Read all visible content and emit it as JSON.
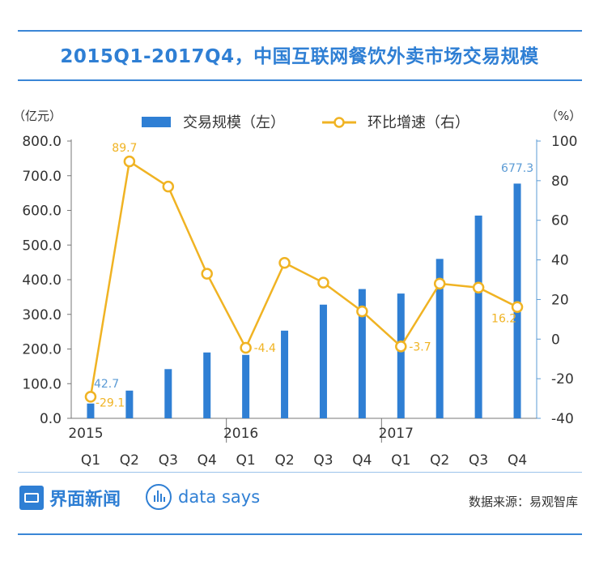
{
  "header": {
    "title": "2015Q1-2017Q4，中国互联网餐饮外卖市场交易规模"
  },
  "footer": {
    "brand": "界面新闻",
    "brand2": "data says",
    "source": "数据来源：易观智库"
  },
  "colors": {
    "bar": "#2f7fd4",
    "line": "#f0b323",
    "title": "#2f7fd4",
    "axis": "#333333",
    "right_axis": "#5b9bd5"
  },
  "chart_data": {
    "type": "bar+line",
    "left_unit": "（亿元）",
    "right_unit": "（%）",
    "categories": [
      "Q1",
      "Q2",
      "Q3",
      "Q4",
      "Q1",
      "Q2",
      "Q3",
      "Q4",
      "Q1",
      "Q2",
      "Q3",
      "Q4"
    ],
    "years": [
      {
        "label": "2015",
        "index": 0
      },
      {
        "label": "2016",
        "index": 4
      },
      {
        "label": "2017",
        "index": 8
      }
    ],
    "series": [
      {
        "name": "交易规模（左）",
        "type": "bar",
        "axis": "left",
        "values": [
          42.7,
          80,
          142,
          190,
          183,
          253,
          328,
          373,
          360,
          460,
          585,
          677.3
        ]
      },
      {
        "name": "环比增速（右）",
        "type": "line",
        "axis": "right",
        "values": [
          -29.1,
          89.7,
          77,
          33,
          -4.4,
          38.5,
          28.5,
          14,
          -3.7,
          28,
          26,
          16.2
        ]
      }
    ],
    "bar_labels": [
      {
        "index": 0,
        "text": "42.7"
      },
      {
        "index": 11,
        "text": "677.3"
      }
    ],
    "line_labels": [
      {
        "index": 0,
        "text": "-29.1"
      },
      {
        "index": 1,
        "text": "89.7"
      },
      {
        "index": 4,
        "text": "-4.4"
      },
      {
        "index": 8,
        "text": "-3.7"
      },
      {
        "index": 11,
        "text": "16.2"
      }
    ],
    "y_left": {
      "min": 0,
      "max": 800,
      "ticks": [
        "0.0",
        "100.0",
        "200.0",
        "300.0",
        "400.0",
        "500.0",
        "600.0",
        "700.0",
        "800.0"
      ]
    },
    "y_right": {
      "min": -40,
      "max": 100,
      "ticks": [
        "-40",
        "-20",
        "0",
        "20",
        "40",
        "60",
        "80",
        "100"
      ]
    },
    "legend_position": "top-center",
    "grid": false
  }
}
